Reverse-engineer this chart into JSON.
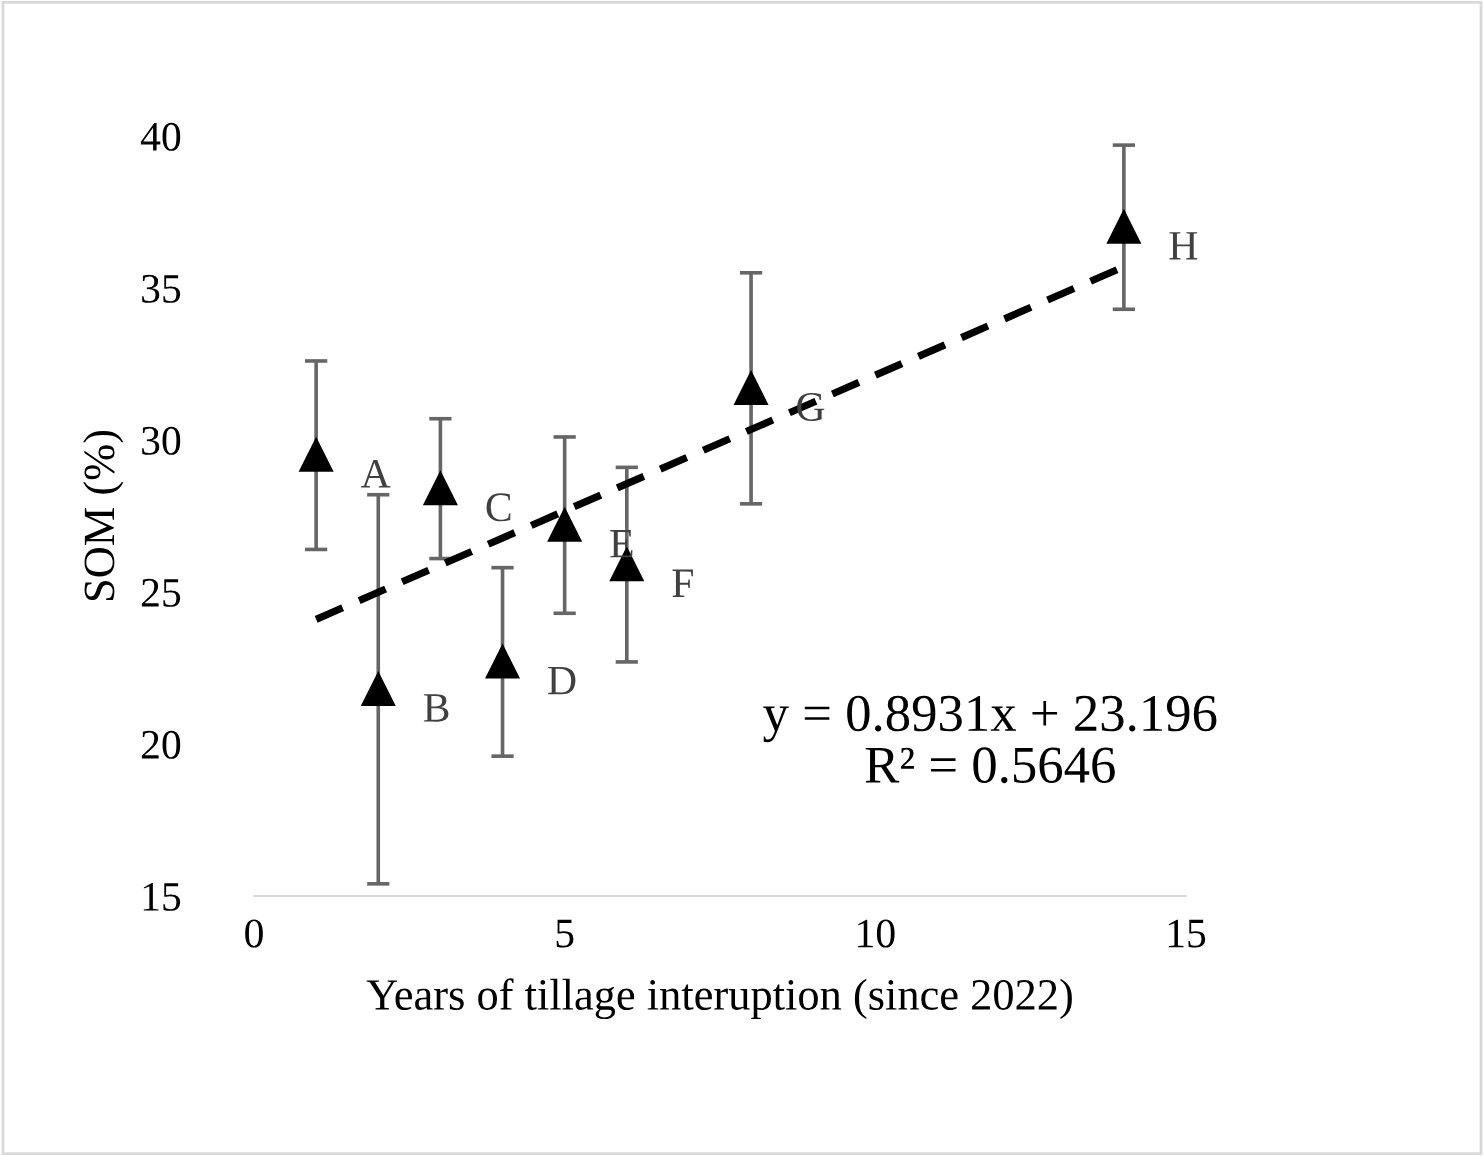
{
  "chart_data": {
    "type": "scatter",
    "xlabel": "Years of tillage interuption (since 2022)",
    "ylabel": "SOM (%)",
    "xlim": [
      0,
      15
    ],
    "xticks": [
      0,
      5,
      10,
      15
    ],
    "ylim": [
      15,
      40
    ],
    "yticks": [
      15,
      20,
      25,
      30,
      35,
      40
    ],
    "grid": false,
    "legend": false,
    "series": [
      {
        "color": "#000000",
        "marker": "triangle",
        "x": [
          1,
          2,
          3,
          4,
          5,
          6,
          8,
          14
        ],
        "values": [
          29.5,
          21.8,
          28.4,
          22.7,
          27.2,
          25.9,
          31.7,
          37.0
        ],
        "errors": [
          3.1,
          6.4,
          2.3,
          3.1,
          2.9,
          3.2,
          3.8,
          2.7
        ]
      },
      {
        "type": "line",
        "color": "#000000",
        "line_style": "dashed",
        "marker": "none",
        "x": [
          1,
          14
        ],
        "values": [
          24.1,
          35.7
        ]
      }
    ],
    "annotations": [
      {
        "text": "A",
        "x": 1,
        "y": 29.5
      },
      {
        "text": "B",
        "x": 2,
        "y": 21.8
      },
      {
        "text": "C",
        "x": 3,
        "y": 28.4
      },
      {
        "text": "D",
        "x": 4,
        "y": 22.7
      },
      {
        "text": "E",
        "x": 5,
        "y": 27.2
      },
      {
        "text": "F",
        "x": 6,
        "y": 25.9
      },
      {
        "text": "G",
        "x": 8,
        "y": 31.7
      },
      {
        "text": "H",
        "x": 14,
        "y": 37.0
      },
      "y = 0.8931x + 23.196\nR² = 0.5646"
    ]
  }
}
